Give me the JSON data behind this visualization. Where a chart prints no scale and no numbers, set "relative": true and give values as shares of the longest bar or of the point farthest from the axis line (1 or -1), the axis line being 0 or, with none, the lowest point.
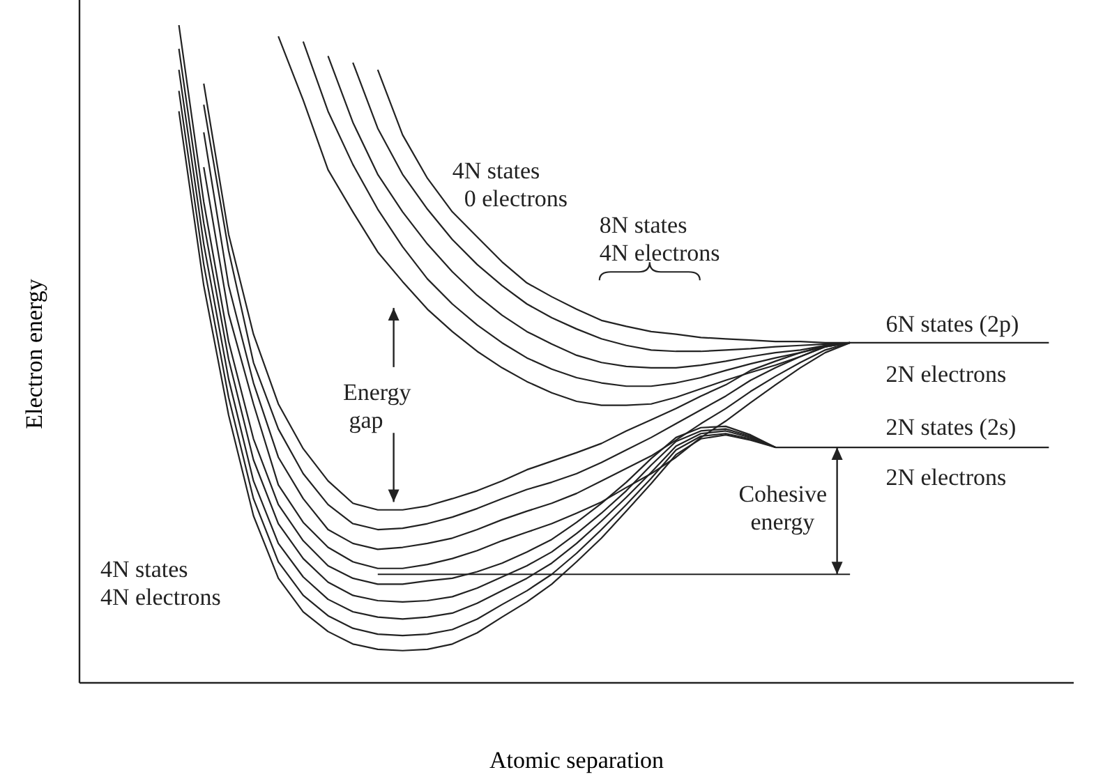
{
  "chart_data": {
    "type": "line",
    "relative": true,
    "xlabel": "Atomic separation",
    "ylabel": "Electron energy",
    "marker": "none",
    "line_style": "solid",
    "categories": [
      null,
      null,
      null,
      null,
      null,
      null,
      null,
      null,
      null,
      null,
      null,
      null,
      null,
      null,
      null,
      null,
      null,
      null,
      null,
      null,
      null,
      null,
      null,
      null,
      null,
      null,
      null,
      null,
      null,
      null,
      null,
      null,
      null,
      null,
      null,
      null,
      null,
      null,
      null,
      null,
      null
    ],
    "series": [
      {
        "color": "#222222",
        "values": [
          null,
          null,
          null,
          null,
          null,
          null,
          null,
          null,
          0.983,
          0.886,
          0.78,
          0.716,
          0.655,
          0.61,
          0.568,
          0.534,
          0.504,
          0.479,
          0.458,
          0.441,
          0.428,
          0.422,
          0.422,
          0.424,
          0.434,
          0.447,
          0.46,
          0.472,
          0.483,
          0.496,
          0.511,
          0.517,
          0.517,
          0.517,
          0.517,
          0.517,
          0.517,
          0.517,
          0.517,
          0.517,
          null
        ]
      },
      {
        "color": "#222222",
        "values": [
          null,
          null,
          null,
          null,
          null,
          null,
          null,
          null,
          null,
          0.975,
          0.869,
          0.788,
          0.72,
          0.663,
          0.614,
          0.576,
          0.544,
          0.517,
          0.494,
          0.477,
          0.464,
          0.456,
          0.451,
          0.451,
          0.456,
          0.464,
          0.475,
          0.485,
          0.494,
          0.502,
          0.511,
          0.517,
          null,
          null,
          null,
          null,
          null,
          null,
          null,
          null,
          null
        ]
      },
      {
        "color": "#222222",
        "values": [
          null,
          null,
          null,
          null,
          null,
          null,
          null,
          null,
          null,
          null,
          0.953,
          0.852,
          0.773,
          0.716,
          0.667,
          0.625,
          0.589,
          0.559,
          0.534,
          0.515,
          0.498,
          0.487,
          0.481,
          0.479,
          0.479,
          0.483,
          0.489,
          0.496,
          0.502,
          0.506,
          0.513,
          0.517,
          null,
          null,
          null,
          null,
          null,
          null,
          null,
          null,
          null
        ]
      },
      {
        "color": "#222222",
        "values": [
          null,
          null,
          null,
          null,
          null,
          null,
          null,
          null,
          null,
          null,
          null,
          0.943,
          0.843,
          0.773,
          0.72,
          0.674,
          0.636,
          0.604,
          0.576,
          0.555,
          0.538,
          0.523,
          0.513,
          0.506,
          0.504,
          0.504,
          0.506,
          0.508,
          0.511,
          0.513,
          0.515,
          0.517,
          null,
          null,
          null,
          null,
          null,
          null,
          null,
          null,
          null
        ]
      },
      {
        "color": "#222222",
        "values": [
          null,
          null,
          null,
          null,
          null,
          null,
          null,
          null,
          null,
          null,
          null,
          null,
          0.932,
          0.833,
          0.767,
          0.716,
          0.678,
          0.64,
          0.608,
          0.587,
          0.568,
          0.551,
          0.542,
          0.534,
          0.53,
          0.525,
          0.523,
          0.521,
          0.519,
          0.519,
          0.517,
          0.517,
          null,
          null,
          null,
          null,
          null,
          null,
          null,
          null,
          null
        ]
      },
      {
        "color": "#222222",
        "values": [
          null,
          null,
          null,
          null,
          null,
          0.911,
          0.682,
          0.53,
          0.424,
          0.356,
          0.307,
          0.273,
          0.263,
          0.263,
          0.269,
          0.28,
          0.292,
          0.307,
          0.324,
          0.337,
          0.35,
          0.364,
          0.383,
          0.4,
          0.417,
          0.436,
          0.453,
          0.475,
          0.489,
          0.502,
          0.513,
          0.517,
          null,
          null,
          null,
          null,
          null,
          null,
          null,
          null,
          null
        ]
      },
      {
        "color": "#222222",
        "values": [
          null,
          null,
          null,
          null,
          null,
          0.879,
          0.657,
          0.487,
          0.386,
          0.318,
          0.271,
          0.242,
          0.233,
          0.235,
          0.242,
          0.252,
          0.265,
          0.28,
          0.294,
          0.305,
          0.318,
          0.335,
          0.354,
          0.373,
          0.394,
          0.415,
          0.436,
          0.46,
          0.479,
          0.496,
          0.511,
          0.517,
          null,
          null,
          null,
          null,
          null,
          null,
          null,
          null,
          null
        ]
      },
      {
        "color": "#222222",
        "values": [
          null,
          null,
          null,
          null,
          null,
          0.837,
          0.604,
          0.456,
          0.343,
          0.28,
          0.233,
          0.212,
          0.203,
          0.206,
          0.212,
          0.22,
          0.233,
          0.248,
          0.261,
          0.273,
          0.288,
          0.307,
          0.326,
          0.345,
          0.369,
          0.394,
          0.417,
          0.443,
          0.466,
          0.487,
          0.506,
          0.517,
          null,
          null,
          null,
          null,
          null,
          null,
          null,
          null,
          null
        ]
      },
      {
        "color": "#222222",
        "values": [
          null,
          null,
          null,
          null,
          null,
          0.784,
          0.561,
          0.424,
          0.301,
          0.244,
          0.206,
          0.184,
          0.174,
          0.174,
          0.18,
          0.189,
          0.201,
          0.216,
          0.229,
          0.242,
          0.258,
          0.275,
          0.297,
          0.318,
          0.343,
          0.373,
          0.398,
          0.426,
          0.453,
          0.479,
          0.502,
          0.517,
          null,
          null,
          null,
          null,
          null,
          null,
          null,
          null,
          null
        ]
      },
      {
        "color": "#222222",
        "values": [
          null,
          null,
          null,
          null,
          1,
          0.731,
          0.519,
          0.371,
          0.271,
          0.216,
          0.178,
          0.159,
          0.15,
          0.15,
          0.155,
          0.159,
          0.169,
          0.182,
          0.199,
          0.218,
          0.244,
          0.273,
          0.305,
          0.341,
          0.373,
          0.388,
          0.39,
          0.377,
          0.358,
          0.358,
          0.358,
          0.358,
          0.358,
          0.358,
          0.358,
          0.358,
          0.358,
          0.358,
          0.358,
          0.358,
          null
        ]
      },
      {
        "color": "#222222",
        "values": [
          null,
          null,
          null,
          null,
          0.964,
          0.699,
          0.492,
          0.339,
          0.242,
          0.189,
          0.153,
          0.133,
          0.125,
          0.123,
          0.125,
          0.131,
          0.144,
          0.161,
          0.178,
          0.199,
          0.227,
          0.258,
          0.292,
          0.331,
          0.367,
          0.383,
          0.386,
          0.375,
          0.358,
          null,
          null,
          null,
          null,
          null,
          null,
          null,
          null,
          null,
          null,
          null,
          null
        ]
      },
      {
        "color": "#222222",
        "values": [
          null,
          null,
          null,
          null,
          0.932,
          0.667,
          0.462,
          0.307,
          0.212,
          0.161,
          0.127,
          0.108,
          0.1,
          0.097,
          0.1,
          0.106,
          0.121,
          0.14,
          0.159,
          0.182,
          0.212,
          0.246,
          0.282,
          0.32,
          0.36,
          0.379,
          0.383,
          0.373,
          0.358,
          null,
          null,
          null,
          null,
          null,
          null,
          null,
          null,
          null,
          null,
          null,
          null
        ]
      },
      {
        "color": "#222222",
        "values": [
          null,
          null,
          null,
          null,
          0.9,
          0.636,
          0.434,
          0.28,
          0.184,
          0.133,
          0.102,
          0.083,
          0.074,
          0.072,
          0.074,
          0.081,
          0.097,
          0.119,
          0.14,
          0.165,
          0.197,
          0.233,
          0.271,
          0.311,
          0.354,
          0.375,
          0.379,
          0.371,
          0.358,
          null,
          null,
          null,
          null,
          null,
          null,
          null,
          null,
          null,
          null,
          null,
          null
        ]
      },
      {
        "color": "#222222",
        "values": [
          null,
          null,
          null,
          null,
          0.869,
          0.604,
          0.407,
          0.254,
          0.159,
          0.108,
          0.078,
          0.059,
          0.051,
          0.049,
          0.051,
          0.059,
          0.076,
          0.1,
          0.123,
          0.15,
          0.184,
          0.22,
          0.261,
          0.303,
          0.347,
          0.371,
          0.377,
          0.369,
          0.358,
          null,
          null,
          null,
          null,
          null,
          null,
          null,
          null,
          null,
          null,
          null,
          null
        ]
      },
      {
        "color": "#222222",
        "values": [
          null,
          null,
          null,
          null,
          null,
          null,
          null,
          null,
          null,
          null,
          null,
          null,
          0.165,
          0.165,
          0.165,
          0.165,
          0.165,
          0.165,
          0.165,
          0.165,
          0.165,
          0.165,
          0.165,
          0.165,
          0.165,
          0.165,
          0.165,
          0.165,
          0.165,
          0.165,
          0.165,
          0.165,
          null,
          null,
          null,
          null,
          null,
          null,
          null,
          null,
          null
        ]
      }
    ],
    "annotations": [
      "4N states\n  0 electrons",
      "8N states\n4N electrons",
      "6N states (2p)",
      "2N electrons",
      "2N states (2s)",
      "2N electrons",
      "Energy\n gap",
      "Cohesive\n  energy",
      "4N states\n4N electrons"
    ]
  }
}
